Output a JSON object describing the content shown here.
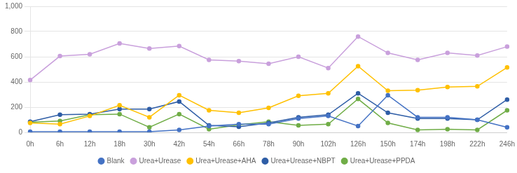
{
  "chart_data": {
    "type": "line",
    "categories": [
      "0h",
      "6h",
      "12h",
      "18h",
      "30h",
      "42h",
      "54h",
      "66h",
      "78h",
      "90h",
      "102h",
      "126h",
      "150h",
      "174h",
      "198h",
      "222h",
      "246h"
    ],
    "series": [
      {
        "name": "Blank",
        "color": "#4472C4",
        "values": [
          5,
          5,
          5,
          5,
          5,
          20,
          50,
          65,
          65,
          110,
          130,
          50,
          295,
          120,
          120,
          100,
          40
        ]
      },
      {
        "name": "Urea+Urease",
        "color": "#C9A0DC",
        "values": [
          415,
          605,
          620,
          705,
          665,
          685,
          575,
          565,
          545,
          600,
          510,
          760,
          630,
          575,
          630,
          610,
          680
        ]
      },
      {
        "name": "Urea+Urease+AHA",
        "color": "#FFC000",
        "values": [
          75,
          65,
          130,
          215,
          120,
          295,
          175,
          155,
          195,
          290,
          310,
          525,
          330,
          335,
          360,
          365,
          515
        ]
      },
      {
        "name": "Urea+Urease+NBPT",
        "color": "#2E5DA6",
        "values": [
          85,
          140,
          145,
          185,
          185,
          245,
          55,
          45,
          75,
          120,
          140,
          310,
          155,
          110,
          110,
          100,
          260
        ]
      },
      {
        "name": "Urea+Urease+PPDA",
        "color": "#70AD47",
        "values": [
          80,
          90,
          140,
          145,
          40,
          145,
          25,
          60,
          85,
          55,
          65,
          265,
          75,
          20,
          25,
          20,
          175
        ]
      }
    ],
    "ylim": [
      0,
      1000
    ],
    "yticks": [
      0,
      200,
      400,
      600,
      800,
      {
        "value": 1000,
        "label": "1,000"
      }
    ],
    "grid": true,
    "legend": "bottom",
    "marker": "circle"
  }
}
